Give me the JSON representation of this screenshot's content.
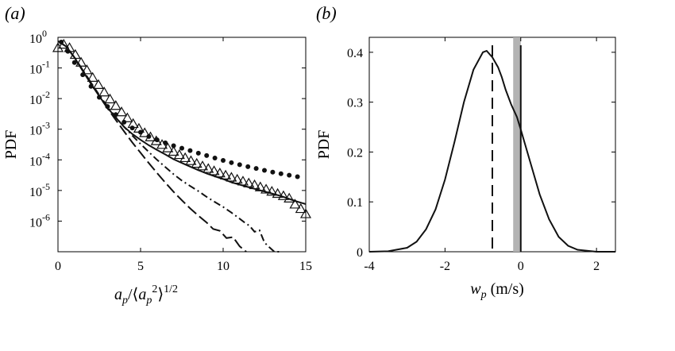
{
  "chart_data": [
    {
      "type": "line",
      "panel_label": "(a)",
      "ylabel": "PDF",
      "xlabel": "a_p/⟨a_p^2⟩^1/2",
      "xlim": [
        0,
        15
      ],
      "xticks": [
        0,
        5,
        10,
        15
      ],
      "ylim": [
        1e-07,
        1
      ],
      "yscale": "log",
      "yticks": [
        {
          "base": "10",
          "exp": "0",
          "value": 1
        },
        {
          "base": "10",
          "exp": "-1",
          "value": 0.1
        },
        {
          "base": "10",
          "exp": "-2",
          "value": 0.01
        },
        {
          "base": "10",
          "exp": "-3",
          "value": 0.001
        },
        {
          "base": "10",
          "exp": "-4",
          "value": 0.0001
        },
        {
          "base": "10",
          "exp": "-5",
          "value": 1e-05
        },
        {
          "base": "10",
          "exp": "-6",
          "value": 1e-06
        }
      ],
      "grid": false,
      "series": [
        {
          "style": "dotted-markers",
          "x": [
            0.2,
            0.6,
            1,
            1.5,
            2,
            2.5,
            3,
            3.5,
            4,
            4.5,
            5,
            5.5,
            6,
            6.5,
            7,
            7.5,
            8,
            8.5,
            9,
            9.5,
            10,
            10.5,
            11,
            11.5,
            12,
            12.5,
            13,
            13.5,
            14,
            14.5
          ],
          "y": [
            0.7,
            0.35,
            0.15,
            0.06,
            0.025,
            0.011,
            0.0055,
            0.003,
            0.0017,
            0.0011,
            0.0008,
            0.00058,
            0.00045,
            0.00036,
            0.00029,
            0.00024,
            0.0002,
            0.000165,
            0.000138,
            0.000115,
            9.55e-05,
            8.1e-05,
            6.95e-05,
            6e-05,
            5.22e-05,
            4.55e-05,
            3.98e-05,
            3.52e-05,
            3.15e-05,
            2.82e-05
          ]
        },
        {
          "style": "solid",
          "x": [
            0,
            0.5,
            1,
            1.5,
            2,
            2.5,
            3,
            3.5,
            4,
            4.5,
            5,
            5.5,
            6,
            6.5,
            7,
            7.5,
            8,
            8.5,
            9,
            9.5,
            10,
            10.5,
            11,
            11.5,
            12,
            12.5,
            13,
            13.5,
            14,
            14.5,
            15
          ],
          "y": [
            0.75,
            0.5,
            0.22,
            0.08,
            0.03,
            0.012,
            0.005,
            0.0024,
            0.0012,
            0.0007,
            0.00045,
            0.0003,
            0.00021,
            0.00015,
            0.000105,
            7.9e-05,
            6e-05,
            4.6e-05,
            3.6e-05,
            2.9e-05,
            2.35e-05,
            1.85e-05,
            1.55e-05,
            1.3e-05,
            1.1e-05,
            9.3e-06,
            7.8e-06,
            6.6e-06,
            5.3e-06,
            4.3e-06,
            3.6e-06
          ]
        },
        {
          "style": "triangle-markers",
          "x": [
            0,
            0.35,
            0.7,
            1.05,
            1.4,
            1.75,
            2.1,
            2.45,
            2.8,
            3.15,
            3.5,
            3.85,
            4.2,
            4.55,
            4.9,
            5.25,
            5.6,
            5.95,
            6.3,
            6.65,
            7,
            7.35,
            7.7,
            8.05,
            8.4,
            8.75,
            9.1,
            9.45,
            9.8,
            10.15,
            10.5,
            10.85,
            11.2,
            11.55,
            11.9,
            12.25,
            12.6,
            12.95,
            13.3,
            13.65,
            14,
            14.35,
            14.7,
            15
          ],
          "y": [
            0.45,
            0.58,
            0.45,
            0.27,
            0.15,
            0.085,
            0.048,
            0.028,
            0.016,
            0.0095,
            0.0058,
            0.0036,
            0.0023,
            0.0015,
            0.00105,
            0.00075,
            0.00055,
            0.00041,
            0.00031,
            0.00024,
            0.000185,
            0.000145,
            0.000115,
            9.2e-05,
            7.5e-05,
            6.2e-05,
            5.1e-05,
            4.3e-05,
            3.65e-05,
            3.1e-05,
            2.65e-05,
            2.28e-05,
            1.98e-05,
            1.72e-05,
            1.5e-05,
            1.28e-05,
            1.08e-05,
            9.2e-06,
            7.8e-06,
            6.6e-06,
            5.5e-06,
            3.5e-06,
            2.5e-06,
            1.7e-06
          ]
        },
        {
          "style": "dash-dot",
          "x": [
            0,
            0.5,
            1,
            1.5,
            2,
            2.5,
            3,
            3.5,
            4,
            4.5,
            5,
            5.5,
            6,
            6.5,
            7,
            7.5,
            8,
            8.5,
            9,
            9.5,
            10,
            10.5,
            11,
            11.3,
            11.6,
            11.9,
            12.2,
            12.5,
            12.8,
            13.1,
            13.4
          ],
          "y": [
            0.75,
            0.5,
            0.22,
            0.085,
            0.033,
            0.013,
            0.0055,
            0.0025,
            0.0012,
            0.00062,
            0.00033,
            0.00018,
            0.0001,
            5.8e-05,
            3.4e-05,
            2.1e-05,
            1.4e-05,
            9.5e-06,
            6.2e-06,
            4.2e-06,
            2.9e-06,
            1.9e-06,
            1.2e-06,
            9e-07,
            7e-07,
            4.5e-07,
            5e-07,
            2e-07,
            1.4e-07,
            9e-08,
            1e-07
          ]
        },
        {
          "style": "long-dash",
          "x": [
            0,
            0.5,
            1,
            1.5,
            2,
            2.5,
            3,
            3.5,
            4,
            4.5,
            5,
            5.5,
            6,
            6.5,
            7,
            7.5,
            8,
            8.5,
            9,
            9.4,
            9.8,
            10.2,
            10.6,
            11,
            11.4
          ],
          "y": [
            0.75,
            0.5,
            0.22,
            0.085,
            0.033,
            0.012,
            0.0048,
            0.002,
            0.00085,
            0.00037,
            0.00017,
            7.8e-05,
            3.7e-05,
            1.8e-05,
            9e-06,
            4.8e-06,
            2.6e-06,
            1.5e-06,
            9e-07,
            5.5e-07,
            4.8e-07,
            2.8e-07,
            3e-07,
            1.5e-07,
            1e-07
          ]
        }
      ]
    },
    {
      "type": "line",
      "panel_label": "(b)",
      "ylabel": "PDF",
      "xlabel": "w_p (m/s)",
      "xlim": [
        -4,
        2.5
      ],
      "xticks": [
        -4,
        -2,
        0,
        2
      ],
      "ylim": [
        0,
        0.43
      ],
      "yticks": [
        0,
        0.1,
        0.2,
        0.3,
        0.4
      ],
      "grid": false,
      "series": [
        {
          "style": "solid",
          "x": [
            -4,
            -3.5,
            -3,
            -2.75,
            -2.5,
            -2.25,
            -2,
            -1.75,
            -1.5,
            -1.25,
            -1,
            -0.9,
            -0.75,
            -0.6,
            -0.5,
            -0.4,
            -0.25,
            -0.1,
            0,
            0.25,
            0.5,
            0.75,
            1,
            1.25,
            1.5,
            2,
            2.5
          ],
          "y": [
            0,
            0.001,
            0.008,
            0.02,
            0.045,
            0.085,
            0.145,
            0.22,
            0.3,
            0.365,
            0.4,
            0.403,
            0.39,
            0.37,
            0.35,
            0.325,
            0.295,
            0.27,
            0.245,
            0.18,
            0.115,
            0.065,
            0.03,
            0.012,
            0.004,
            0,
            0
          ]
        }
      ],
      "vertical_lines": [
        {
          "x": -0.75,
          "style": "dashed"
        },
        {
          "x": 0,
          "style": "solid"
        }
      ],
      "shaded_band": {
        "from": -0.2,
        "to": 0.0,
        "color": "#b3b3b3"
      }
    }
  ]
}
